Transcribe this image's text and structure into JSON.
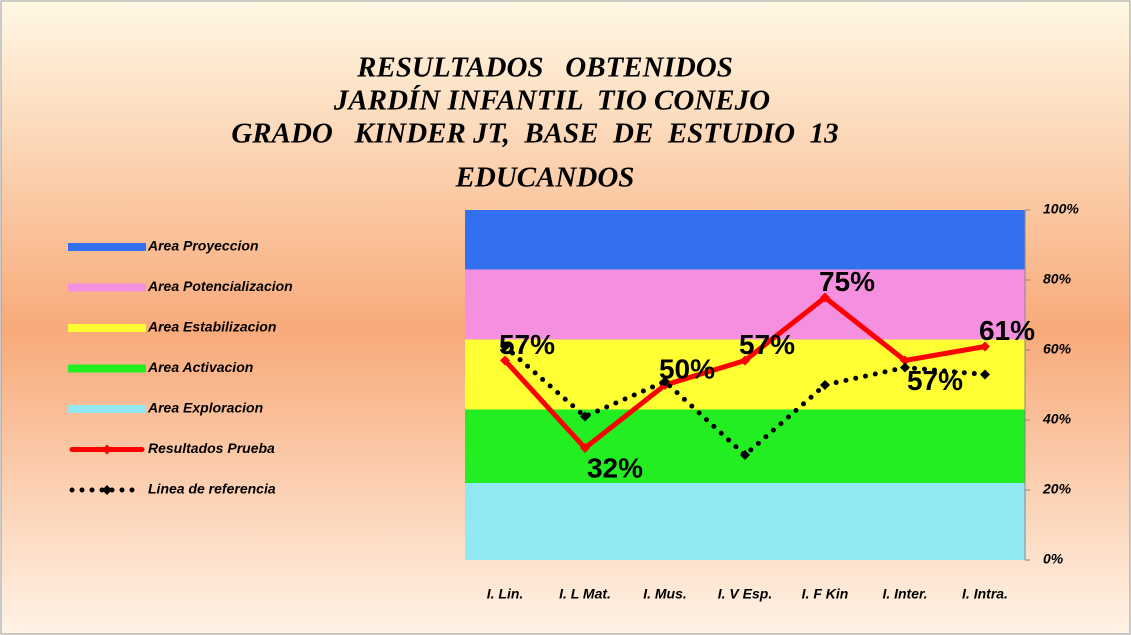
{
  "chart_data": {
    "type": "combo",
    "title": [
      "RESULTADOS   OBTENIDOS",
      "JARDÍN INFANTIL  TIO CONEJO",
      "GRADO   KINDER JT,  BASE  DE  ESTUDIO  13",
      "EDUCANDOS"
    ],
    "categories": [
      "I. Lin.",
      "I. L Mat.",
      "I. Mus.",
      "I. V Esp.",
      "I. F Kin",
      "I. Inter.",
      "I. Intra."
    ],
    "series": [
      {
        "name": "Area Exploracion",
        "type": "area",
        "stacked": true,
        "color": "#92e8f2",
        "values": [
          22,
          22,
          22,
          22,
          22,
          22,
          22
        ]
      },
      {
        "name": "Area Activacion",
        "type": "area",
        "stacked": true,
        "color": "#22ee22",
        "values": [
          21,
          21,
          21,
          21,
          21,
          21,
          21
        ]
      },
      {
        "name": "Area Estabilizacion",
        "type": "area",
        "stacked": true,
        "color": "#ffff33",
        "values": [
          20,
          20,
          20,
          20,
          20,
          20,
          20
        ]
      },
      {
        "name": "Area Potencializacion",
        "type": "area",
        "stacked": true,
        "color": "#f590e0",
        "values": [
          20,
          20,
          20,
          20,
          20,
          20,
          20
        ]
      },
      {
        "name": "Area Proyeccion",
        "type": "area",
        "stacked": true,
        "color": "#3370f0",
        "values": [
          17,
          17,
          17,
          17,
          17,
          17,
          17
        ]
      },
      {
        "name": "Resultados Prueba",
        "type": "line",
        "color": "#ff0000",
        "values": [
          57,
          32,
          50,
          57,
          75,
          57,
          61
        ],
        "value_labels": [
          "57%",
          "32%",
          "50%",
          "57%",
          "75%",
          "57%",
          "61%"
        ]
      },
      {
        "name": "Linea de referencia",
        "type": "line",
        "dotted": true,
        "color": "#000000",
        "values": [
          61,
          41,
          51,
          30,
          50,
          55,
          53
        ]
      }
    ],
    "ylim": [
      0,
      100
    ],
    "yticks": [
      {
        "value": 0,
        "label": "0%"
      },
      {
        "value": 20,
        "label": "20%"
      },
      {
        "value": 40,
        "label": "40%"
      },
      {
        "value": 60,
        "label": "60%"
      },
      {
        "value": 80,
        "label": "80%"
      },
      {
        "value": 100,
        "label": "100%"
      }
    ],
    "y_axis_side": "right"
  }
}
